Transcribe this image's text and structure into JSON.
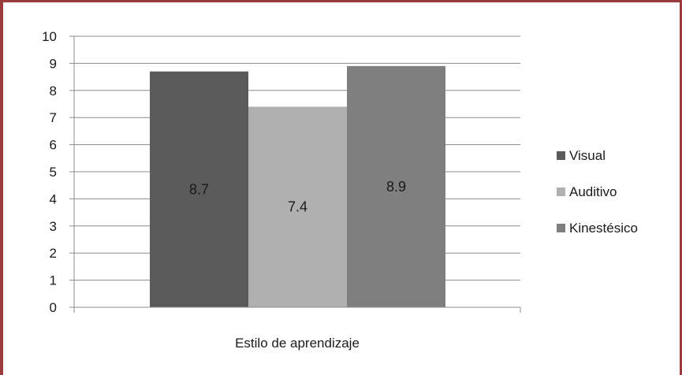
{
  "chart_data": {
    "type": "bar",
    "categories": [
      "Estilo de aprendizaje"
    ],
    "series": [
      {
        "name": "Visual",
        "values": [
          8.7
        ],
        "color": "#5a5a5a"
      },
      {
        "name": "Auditivo",
        "values": [
          7.4
        ],
        "color": "#b0b0b0"
      },
      {
        "name": "Kinestésico",
        "values": [
          8.9
        ],
        "color": "#7f7f7f"
      }
    ],
    "data_labels": [
      "8.7",
      "7.4",
      "8.9"
    ],
    "ylim": [
      0,
      10
    ],
    "yticks": [
      "0",
      "1",
      "2",
      "3",
      "4",
      "5",
      "6",
      "7",
      "8",
      "9",
      "10"
    ],
    "grid": true,
    "legend": "right"
  }
}
